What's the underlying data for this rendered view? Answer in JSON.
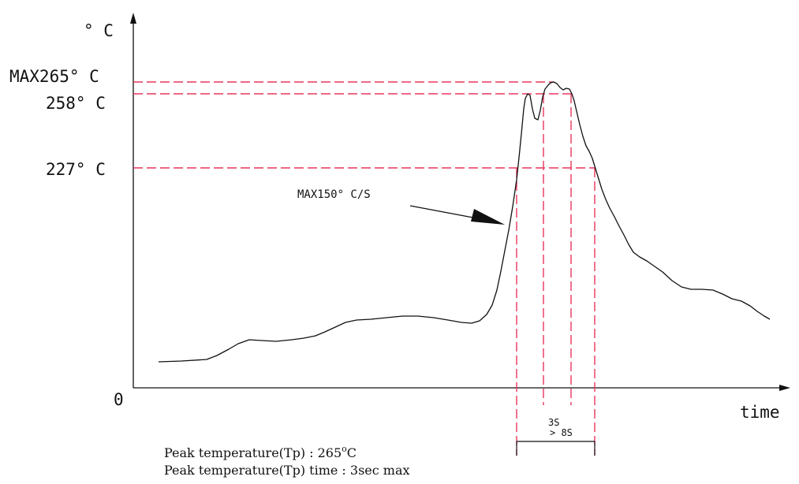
{
  "axes": {
    "y_unit": "° C",
    "origin": "0",
    "x_label": "time"
  },
  "levels": {
    "max_peak": "MAX265° C",
    "level_258": "258° C",
    "level_227": "227° C"
  },
  "annotations": {
    "ramp_rate": "MAX150° C/S",
    "peak_window": "3S",
    "above_227_window": "> 8S"
  },
  "notes": {
    "line1_prefix": "Peak temperature(Tp) : 265",
    "line1_sup": "o",
    "line1_suffix": "C",
    "line2": "Peak temperature(Tp) time : 3sec max"
  },
  "colors": {
    "guide_lines": "#e8365d",
    "axes_and_curve": "#111111"
  }
}
